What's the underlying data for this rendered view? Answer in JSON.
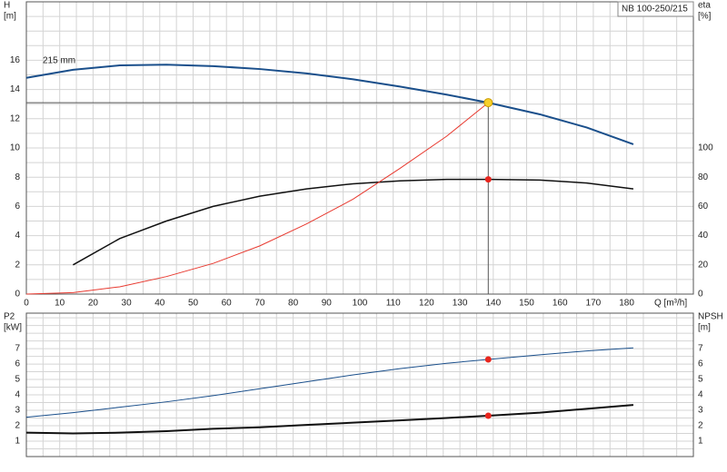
{
  "chart_data": [
    {
      "type": "line",
      "y_label": "H",
      "y_unit": "[m]",
      "y2_label": "eta",
      "y2_unit": "[%]",
      "model": "NB 100-250/215",
      "x_label": "Q [m³/h]",
      "xlim": [
        0,
        200
      ],
      "xticks": [
        0,
        10,
        20,
        30,
        40,
        50,
        60,
        70,
        80,
        90,
        100,
        110,
        120,
        130,
        140,
        150,
        160,
        170,
        180
      ],
      "ylim": [
        0,
        20
      ],
      "yticks": [
        0,
        2,
        4,
        6,
        8,
        10,
        12,
        14,
        16
      ],
      "y2lim": [
        0,
        200
      ],
      "y2ticks": [
        0,
        20,
        40,
        60,
        80,
        100
      ],
      "grid": true,
      "show_xtick_labels": true,
      "series": [
        {
          "label": "215 mm",
          "color": "#1a4f8b",
          "width": 2,
          "x": [
            0,
            14,
            28,
            42,
            56,
            70,
            84,
            98,
            112,
            126,
            138.5,
            154,
            168,
            182
          ],
          "values": [
            14.8,
            15.35,
            15.65,
            15.7,
            15.6,
            15.4,
            15.1,
            14.7,
            14.2,
            13.65,
            13.1,
            12.3,
            11.4,
            10.25
          ]
        },
        {
          "axis": "y2",
          "color": "#111111",
          "width": 1.5,
          "x": [
            14,
            28,
            42,
            56,
            70,
            84,
            98,
            112,
            126,
            139,
            154,
            168,
            182
          ],
          "values": [
            20,
            38,
            50,
            60,
            67,
            72,
            75.5,
            77.5,
            78.5,
            78.5,
            78,
            76,
            72
          ]
        },
        {
          "color": "#e8392f",
          "width": 1,
          "x": [
            0,
            14,
            28,
            42,
            56,
            70,
            84,
            98,
            112,
            126,
            138.5
          ],
          "values": [
            0,
            0.1,
            0.5,
            1.2,
            2.1,
            3.3,
            4.8,
            6.5,
            8.6,
            10.8,
            13.1
          ]
        }
      ],
      "duty_point": {
        "x": 138.5,
        "y": 13.1,
        "y2": 78.5
      }
    },
    {
      "type": "line",
      "y_label": "P2",
      "y_unit": "[kW]",
      "y2_label": "NPSH",
      "y2_unit": "[m]",
      "xlim": [
        0,
        200
      ],
      "xticks": [
        0,
        10,
        20,
        30,
        40,
        50,
        60,
        70,
        80,
        90,
        100,
        110,
        120,
        130,
        140,
        150,
        160,
        170,
        180
      ],
      "ylim": [
        0,
        9.3
      ],
      "yticks": [
        1,
        2,
        3,
        4,
        5,
        6,
        7
      ],
      "y2lim": [
        0,
        9.3
      ],
      "y2ticks": [
        1,
        2,
        3,
        4,
        5,
        6,
        7
      ],
      "grid": true,
      "show_xtick_labels": false,
      "series": [
        {
          "color": "#1a4f8b",
          "width": 1,
          "x": [
            0,
            14,
            28,
            42,
            56,
            70,
            84,
            98,
            112,
            126,
            138.5,
            154,
            168,
            182
          ],
          "values": [
            2.55,
            2.85,
            3.2,
            3.55,
            3.95,
            4.4,
            4.85,
            5.3,
            5.7,
            6.05,
            6.3,
            6.6,
            6.85,
            7.05
          ]
        },
        {
          "axis": "y2",
          "color": "#111111",
          "width": 2,
          "x": [
            0,
            14,
            28,
            42,
            56,
            70,
            84,
            98,
            112,
            126,
            138.5,
            154,
            168,
            182
          ],
          "values": [
            1.55,
            1.5,
            1.55,
            1.65,
            1.8,
            1.9,
            2.05,
            2.2,
            2.35,
            2.5,
            2.65,
            2.85,
            3.1,
            3.35
          ]
        }
      ],
      "duty_point": {
        "x": 138.5,
        "y": 6.3,
        "y2": 2.65
      }
    }
  ]
}
